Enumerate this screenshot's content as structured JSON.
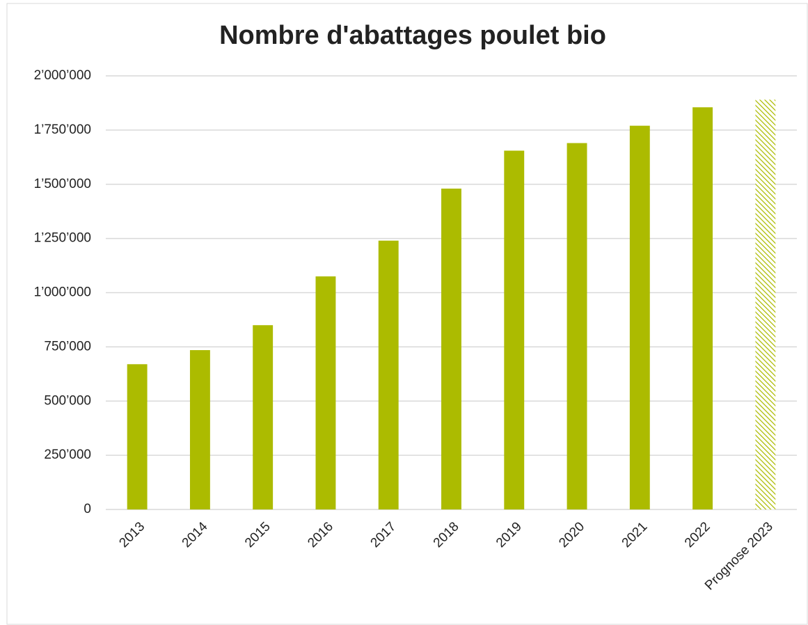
{
  "chart_data": {
    "type": "bar",
    "title": "Nombre d'abattages poulet bio",
    "categories": [
      "2013",
      "2014",
      "2015",
      "2016",
      "2017",
      "2018",
      "2019",
      "2020",
      "2021",
      "2022",
      "Prognose 2023"
    ],
    "values": [
      670000,
      735000,
      850000,
      1075000,
      1240000,
      1480000,
      1655000,
      1690000,
      1770000,
      1855000,
      1890000
    ],
    "bar_styles": [
      "solid",
      "solid",
      "solid",
      "solid",
      "solid",
      "solid",
      "solid",
      "solid",
      "solid",
      "solid",
      "hatched"
    ],
    "color": "#acbb00",
    "ylim": [
      0,
      2000000
    ],
    "yticks": [
      0,
      {
        "value": 250000,
        "label": "250’000"
      },
      {
        "value": 500000,
        "label": "500’000"
      },
      {
        "value": 750000,
        "label": "750’000"
      },
      {
        "value": 1000000,
        "label": "1’000’000"
      },
      {
        "value": 1250000,
        "label": "1’250’000"
      },
      {
        "value": 1500000,
        "label": "1’500’000"
      },
      {
        "value": 1750000,
        "label": "1’750’000"
      },
      {
        "value": 2000000,
        "label": "2’000’000"
      }
    ],
    "grid": true
  }
}
